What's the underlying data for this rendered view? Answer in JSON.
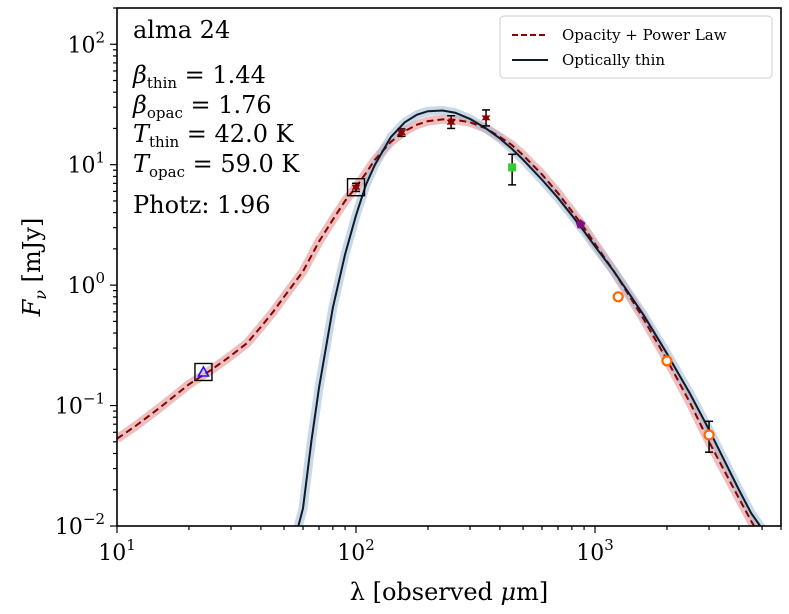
{
  "chart_data": {
    "type": "line",
    "x_scale": "log",
    "y_scale": "log",
    "xlim": [
      10,
      6000
    ],
    "ylim": [
      0.01,
      200
    ],
    "xlabel": {
      "main": "λ [observed ",
      "mu": "μ",
      "unit": "m]"
    },
    "ylabel": {
      "main": "F",
      "sub": "ν",
      "unit": " [mJy]"
    },
    "x_ticks": [
      {
        "value": 10,
        "base": "10",
        "exp": "1"
      },
      {
        "value": 100,
        "base": "10",
        "exp": "2"
      },
      {
        "value": 1000,
        "base": "10",
        "exp": "3"
      }
    ],
    "y_ticks": [
      {
        "value": 0.01,
        "base": "10",
        "exp": "−2"
      },
      {
        "value": 0.1,
        "base": "10",
        "exp": "−1"
      },
      {
        "value": 1,
        "base": "10",
        "exp": "0"
      },
      {
        "value": 10,
        "base": "10",
        "exp": "1"
      },
      {
        "value": 100,
        "base": "10",
        "exp": "2"
      }
    ],
    "annotations": {
      "name": "alma 24",
      "beta_thin": {
        "sym": "β",
        "sub": "thin",
        "value": " = 1.44"
      },
      "beta_opac": {
        "sym": "β",
        "sub": "opac",
        "value": " = 1.76"
      },
      "t_thin": {
        "sym": "T",
        "sub": "thin",
        "value": " = 42.0 K"
      },
      "t_opac": {
        "sym": "T",
        "sub": "opac",
        "value": " = 59.0 K"
      },
      "photz": "Photz: 1.96"
    },
    "legend": {
      "position": "top-right",
      "entries": [
        "Opacity + Power Law",
        "Optically thin"
      ]
    },
    "series": [
      {
        "name": "Opacity + Power Law",
        "color": "#8b0000",
        "band_color": "#e08a8a",
        "style": "dashed",
        "points": [
          [
            10,
            0.053
          ],
          [
            12,
            0.068
          ],
          [
            15,
            0.095
          ],
          [
            20,
            0.15
          ],
          [
            25,
            0.2
          ],
          [
            30,
            0.26
          ],
          [
            35,
            0.33
          ],
          [
            40,
            0.45
          ],
          [
            45,
            0.6
          ],
          [
            50,
            0.8
          ],
          [
            60,
            1.3
          ],
          [
            70,
            2.3
          ],
          [
            80,
            3.5
          ],
          [
            90,
            5.0
          ],
          [
            100,
            6.5
          ],
          [
            110,
            8.5
          ],
          [
            120,
            11
          ],
          [
            140,
            15.5
          ],
          [
            160,
            19
          ],
          [
            180,
            21.5
          ],
          [
            200,
            23
          ],
          [
            230,
            23.8
          ],
          [
            260,
            23.6
          ],
          [
            300,
            22.5
          ],
          [
            350,
            20
          ],
          [
            400,
            17
          ],
          [
            450,
            14.5
          ],
          [
            500,
            12
          ],
          [
            600,
            8.3
          ],
          [
            700,
            5.8
          ],
          [
            800,
            4.1
          ],
          [
            900,
            3.0
          ],
          [
            1000,
            2.2
          ],
          [
            1200,
            1.3
          ],
          [
            1400,
            0.8
          ],
          [
            1600,
            0.52
          ],
          [
            2000,
            0.24
          ],
          [
            2500,
            0.105
          ],
          [
            3000,
            0.05
          ],
          [
            3500,
            0.028
          ],
          [
            4000,
            0.017
          ],
          [
            4500,
            0.011
          ],
          [
            4700,
            0.0095
          ]
        ]
      },
      {
        "name": "Optically thin",
        "color": "#0d1b2a",
        "band_color": "#9fbad6",
        "style": "solid",
        "points": [
          [
            57,
            0.0095
          ],
          [
            60,
            0.014
          ],
          [
            65,
            0.05
          ],
          [
            70,
            0.14
          ],
          [
            80,
            0.65
          ],
          [
            90,
            1.8
          ],
          [
            100,
            3.8
          ],
          [
            110,
            6.8
          ],
          [
            120,
            10
          ],
          [
            140,
            17
          ],
          [
            160,
            22.5
          ],
          [
            180,
            26
          ],
          [
            200,
            27.8
          ],
          [
            230,
            28.2
          ],
          [
            260,
            27
          ],
          [
            300,
            24
          ],
          [
            350,
            20
          ],
          [
            400,
            16.5
          ],
          [
            450,
            13.5
          ],
          [
            500,
            11
          ],
          [
            600,
            7.5
          ],
          [
            700,
            5.3
          ],
          [
            800,
            3.8
          ],
          [
            900,
            2.8
          ],
          [
            1000,
            2.1
          ],
          [
            1200,
            1.3
          ],
          [
            1400,
            0.83
          ],
          [
            1600,
            0.56
          ],
          [
            2000,
            0.27
          ],
          [
            2500,
            0.125
          ],
          [
            3000,
            0.063
          ],
          [
            3500,
            0.034
          ],
          [
            4000,
            0.02
          ],
          [
            4500,
            0.0128
          ],
          [
            5000,
            0.0095
          ]
        ]
      }
    ],
    "data_points": [
      {
        "name": "boxed-triangle",
        "x": 23,
        "y": 0.19,
        "marker": "triangle",
        "color": "#1a1aff",
        "boxed": true
      },
      {
        "name": "boxed-point",
        "x": 100,
        "y": 6.5,
        "marker": "star",
        "color": "#8b0000",
        "boxed": true,
        "yerr": [
          6.0,
          7.0
        ]
      },
      {
        "name": "point-160",
        "x": 155,
        "y": 18.5,
        "marker": "star",
        "color": "#8b0000",
        "yerr": [
          17.2,
          19.8
        ]
      },
      {
        "name": "point-250",
        "x": 250,
        "y": 22.5,
        "marker": "star",
        "color": "#8b0000",
        "yerr": [
          20.0,
          25.5
        ]
      },
      {
        "name": "point-350",
        "x": 350,
        "y": 24.5,
        "marker": "star",
        "color": "#8b0000",
        "yerr": [
          21.0,
          28.5
        ]
      },
      {
        "name": "point-450",
        "x": 450,
        "y": 9.5,
        "marker": "square",
        "color": "#33cc33",
        "yerr": [
          6.8,
          12.2
        ]
      },
      {
        "name": "point-870",
        "x": 870,
        "y": 3.2,
        "marker": "pentagon",
        "color": "#7b0f7b"
      },
      {
        "name": "point-1250",
        "x": 1250,
        "y": 0.8,
        "marker": "circle",
        "color": "#ff6600"
      },
      {
        "name": "point-2000",
        "x": 2000,
        "y": 0.235,
        "marker": "circle",
        "color": "#ff6600"
      },
      {
        "name": "point-3000",
        "x": 3000,
        "y": 0.057,
        "marker": "circle",
        "color": "#ff6600",
        "yerr": [
          0.041,
          0.074
        ]
      }
    ]
  }
}
